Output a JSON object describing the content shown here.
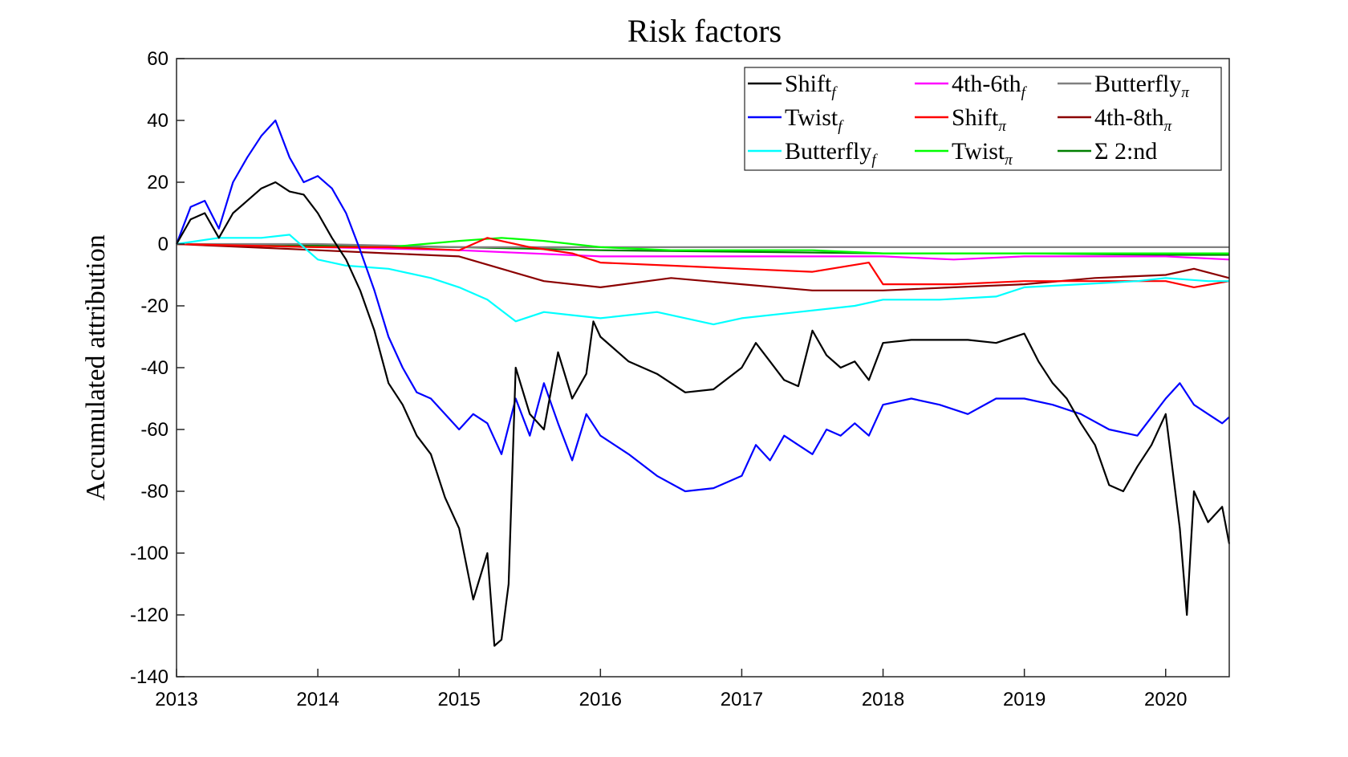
{
  "chart_data": {
    "type": "line",
    "title": "Risk factors",
    "xlabel": "",
    "ylabel": "Accumulated attribution",
    "xlim": [
      2013,
      2020.45
    ],
    "ylim": [
      -140,
      60
    ],
    "xticks": [
      "2013",
      "2014",
      "2015",
      "2016",
      "2017",
      "2018",
      "2019",
      "2020"
    ],
    "yticks": [
      "60",
      "40",
      "20",
      "0",
      "-20",
      "-40",
      "-60",
      "-80",
      "-100",
      "-120",
      "-140"
    ],
    "grid": false,
    "legend_position": "top-right",
    "series": [
      {
        "name": "Shift",
        "sub": "f",
        "color": "#000000",
        "x": [
          2013,
          2013.1,
          2013.2,
          2013.3,
          2013.4,
          2013.5,
          2013.6,
          2013.7,
          2013.8,
          2013.9,
          2014,
          2014.1,
          2014.2,
          2014.3,
          2014.4,
          2014.5,
          2014.6,
          2014.7,
          2014.8,
          2014.9,
          2015,
          2015.1,
          2015.2,
          2015.25,
          2015.3,
          2015.35,
          2015.4,
          2015.5,
          2015.6,
          2015.7,
          2015.8,
          2015.9,
          2015.95,
          2016,
          2016.2,
          2016.4,
          2016.6,
          2016.8,
          2017,
          2017.1,
          2017.2,
          2017.3,
          2017.4,
          2017.5,
          2017.6,
          2017.7,
          2017.8,
          2017.9,
          2018,
          2018.2,
          2018.4,
          2018.6,
          2018.8,
          2019,
          2019.1,
          2019.2,
          2019.3,
          2019.4,
          2019.5,
          2019.6,
          2019.7,
          2019.8,
          2019.9,
          2020,
          2020.1,
          2020.15,
          2020.2,
          2020.3,
          2020.4,
          2020.45
        ],
        "y": [
          0,
          8,
          10,
          2,
          10,
          14,
          18,
          20,
          17,
          16,
          10,
          2,
          -5,
          -15,
          -28,
          -45,
          -52,
          -62,
          -68,
          -82,
          -92,
          -115,
          -100,
          -130,
          -128,
          -110,
          -40,
          -55,
          -60,
          -35,
          -50,
          -42,
          -25,
          -30,
          -38,
          -42,
          -48,
          -47,
          -40,
          -32,
          -38,
          -44,
          -46,
          -28,
          -36,
          -40,
          -38,
          -44,
          -32,
          -31,
          -31,
          -31,
          -32,
          -29,
          -38,
          -45,
          -50,
          -58,
          -65,
          -78,
          -80,
          -72,
          -65,
          -55,
          -92,
          -120,
          -80,
          -90,
          -85,
          -97
        ]
      },
      {
        "name": "Twist",
        "sub": "f",
        "color": "#0000ff",
        "x": [
          2013,
          2013.1,
          2013.2,
          2013.3,
          2013.4,
          2013.5,
          2013.6,
          2013.7,
          2013.8,
          2013.9,
          2014,
          2014.1,
          2014.2,
          2014.3,
          2014.4,
          2014.5,
          2014.6,
          2014.7,
          2014.8,
          2014.9,
          2015,
          2015.1,
          2015.2,
          2015.3,
          2015.4,
          2015.5,
          2015.6,
          2015.7,
          2015.8,
          2015.9,
          2016,
          2016.2,
          2016.4,
          2016.6,
          2016.8,
          2017,
          2017.1,
          2017.2,
          2017.3,
          2017.4,
          2017.5,
          2017.6,
          2017.7,
          2017.8,
          2017.9,
          2018,
          2018.2,
          2018.4,
          2018.6,
          2018.8,
          2019,
          2019.2,
          2019.4,
          2019.6,
          2019.8,
          2020,
          2020.1,
          2020.2,
          2020.3,
          2020.4,
          2020.45
        ],
        "y": [
          0,
          12,
          14,
          5,
          20,
          28,
          35,
          40,
          28,
          20,
          22,
          18,
          10,
          -2,
          -15,
          -30,
          -40,
          -48,
          -50,
          -55,
          -60,
          -55,
          -58,
          -68,
          -50,
          -62,
          -45,
          -58,
          -70,
          -55,
          -62,
          -68,
          -75,
          -80,
          -79,
          -75,
          -65,
          -70,
          -62,
          -65,
          -68,
          -60,
          -62,
          -58,
          -62,
          -52,
          -50,
          -52,
          -55,
          -50,
          -50,
          -52,
          -55,
          -60,
          -62,
          -50,
          -45,
          -52,
          -55,
          -58,
          -56
        ]
      },
      {
        "name": "Butterfly",
        "sub": "f",
        "color": "#00ffff",
        "x": [
          2013,
          2013.3,
          2013.6,
          2013.8,
          2014,
          2014.2,
          2014.5,
          2014.8,
          2015,
          2015.2,
          2015.4,
          2015.6,
          2015.8,
          2016,
          2016.4,
          2016.8,
          2017,
          2017.4,
          2017.8,
          2018,
          2018.4,
          2018.8,
          2019,
          2019.4,
          2019.8,
          2020,
          2020.3,
          2020.45
        ],
        "y": [
          0,
          2,
          2,
          3,
          -5,
          -7,
          -8,
          -11,
          -14,
          -18,
          -25,
          -22,
          -23,
          -24,
          -22,
          -26,
          -24,
          -22,
          -20,
          -18,
          -18,
          -17,
          -14,
          -13,
          -12,
          -11,
          -12,
          -12
        ]
      },
      {
        "name": "4th-6th",
        "sub": "f",
        "color": "#ff00ff",
        "x": [
          2013,
          2014,
          2015,
          2016,
          2017,
          2018,
          2018.5,
          2019,
          2019.5,
          2020,
          2020.45
        ],
        "y": [
          0,
          -1,
          -2,
          -4,
          -4,
          -4,
          -5,
          -4,
          -4,
          -4,
          -5
        ]
      },
      {
        "name": "Shift",
        "sub": "π",
        "color": "#ff0000",
        "x": [
          2013,
          2014,
          2014.5,
          2015,
          2015.2,
          2015.5,
          2015.8,
          2016,
          2016.5,
          2017,
          2017.5,
          2017.9,
          2018,
          2018.5,
          2019,
          2019.5,
          2020,
          2020.2,
          2020.45
        ],
        "y": [
          0,
          -1,
          -1,
          -2,
          2,
          -1,
          -3,
          -6,
          -7,
          -8,
          -9,
          -6,
          -13,
          -13,
          -12,
          -12,
          -12,
          -14,
          -12
        ]
      },
      {
        "name": "Twist",
        "sub": "π",
        "color": "#00ff00",
        "x": [
          2013,
          2014,
          2014.5,
          2015,
          2015.3,
          2015.6,
          2016,
          2016.5,
          2017,
          2017.5,
          2018,
          2018.5,
          2019,
          2019.5,
          2020,
          2020.45
        ],
        "y": [
          0,
          -1,
          -1,
          1,
          2,
          1,
          -1,
          -2,
          -2,
          -2,
          -3,
          -3,
          -3,
          -3,
          -3,
          -3
        ]
      },
      {
        "name": "Butterfly",
        "sub": "π",
        "color": "#808080",
        "x": [
          2013,
          2014,
          2015,
          2016,
          2017,
          2018,
          2019,
          2020,
          2020.45
        ],
        "y": [
          0,
          0,
          -1,
          -1,
          -1,
          -1,
          -1,
          -1,
          -1
        ]
      },
      {
        "name": "4th-8th",
        "sub": "π",
        "color": "#8b0000",
        "x": [
          2013,
          2014,
          2014.5,
          2015,
          2015.3,
          2015.6,
          2016,
          2016.5,
          2017,
          2017.5,
          2018,
          2018.5,
          2019,
          2019.5,
          2020,
          2020.2,
          2020.45
        ],
        "y": [
          0,
          -2,
          -3,
          -4,
          -8,
          -12,
          -14,
          -11,
          -13,
          -15,
          -15,
          -14,
          -13,
          -11,
          -10,
          -8,
          -11
        ]
      },
      {
        "name": "Σ 2:nd",
        "sub": "",
        "color": "#007f00",
        "x": [
          2013,
          2014,
          2015,
          2016,
          2017,
          2018,
          2019,
          2020,
          2020.45
        ],
        "y": [
          0,
          -0.5,
          -1,
          -2,
          -2.5,
          -3,
          -3,
          -3.5,
          -3.5
        ]
      }
    ]
  }
}
